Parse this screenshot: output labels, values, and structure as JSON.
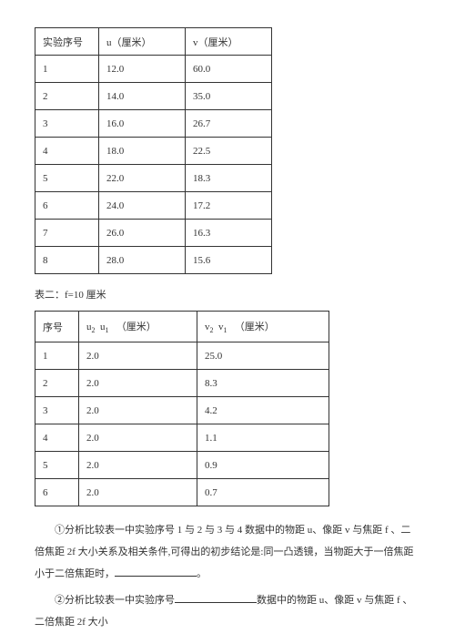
{
  "table1": {
    "headers": [
      "实验序号",
      "u（厘米）",
      "v（厘米）"
    ],
    "rows": [
      [
        "1",
        "12.0",
        "60.0"
      ],
      [
        "2",
        "14.0",
        "35.0"
      ],
      [
        "3",
        "16.0",
        "26.7"
      ],
      [
        "4",
        "18.0",
        "22.5"
      ],
      [
        "5",
        "22.0",
        "18.3"
      ],
      [
        "6",
        "24.0",
        "17.2"
      ],
      [
        "7",
        "26.0",
        "16.3"
      ],
      [
        "8",
        "28.0",
        "15.6"
      ]
    ]
  },
  "caption2": "表二：f=10 厘米",
  "table2": {
    "header_col1": "序号",
    "header_col2_a": "u",
    "header_col2_b": "u",
    "header_col2_sub1": "2",
    "header_col2_sub2": "1",
    "header_col2_unit": "（厘米）",
    "header_col3_a": "v",
    "header_col3_b": "v",
    "header_col3_sub1": "2",
    "header_col3_sub2": "1",
    "header_col3_unit": "（厘米）",
    "rows": [
      [
        "1",
        "2.0",
        "25.0"
      ],
      [
        "2",
        "2.0",
        "8.3"
      ],
      [
        "3",
        "2.0",
        "4.2"
      ],
      [
        "4",
        "2.0",
        "1.1"
      ],
      [
        "5",
        "2.0",
        "0.9"
      ],
      [
        "6",
        "2.0",
        "0.7"
      ]
    ]
  },
  "para1_a": "①分析比较表一中实验序号 1 与 2 与 3 与 4 数据中的物距 u、像距 v 与焦距 f 、二倍焦距 2f 大小关系及相关条件,可得出的初步结论是:同一凸透镜，当物距大于一倍焦距小于二倍焦距时，",
  "para1_b": "。",
  "para2_a": "②分析比较表一中实验序号",
  "para2_b": "数据中的物距 u、像距 v 与焦距 f 、二倍焦距 2f 大小"
}
